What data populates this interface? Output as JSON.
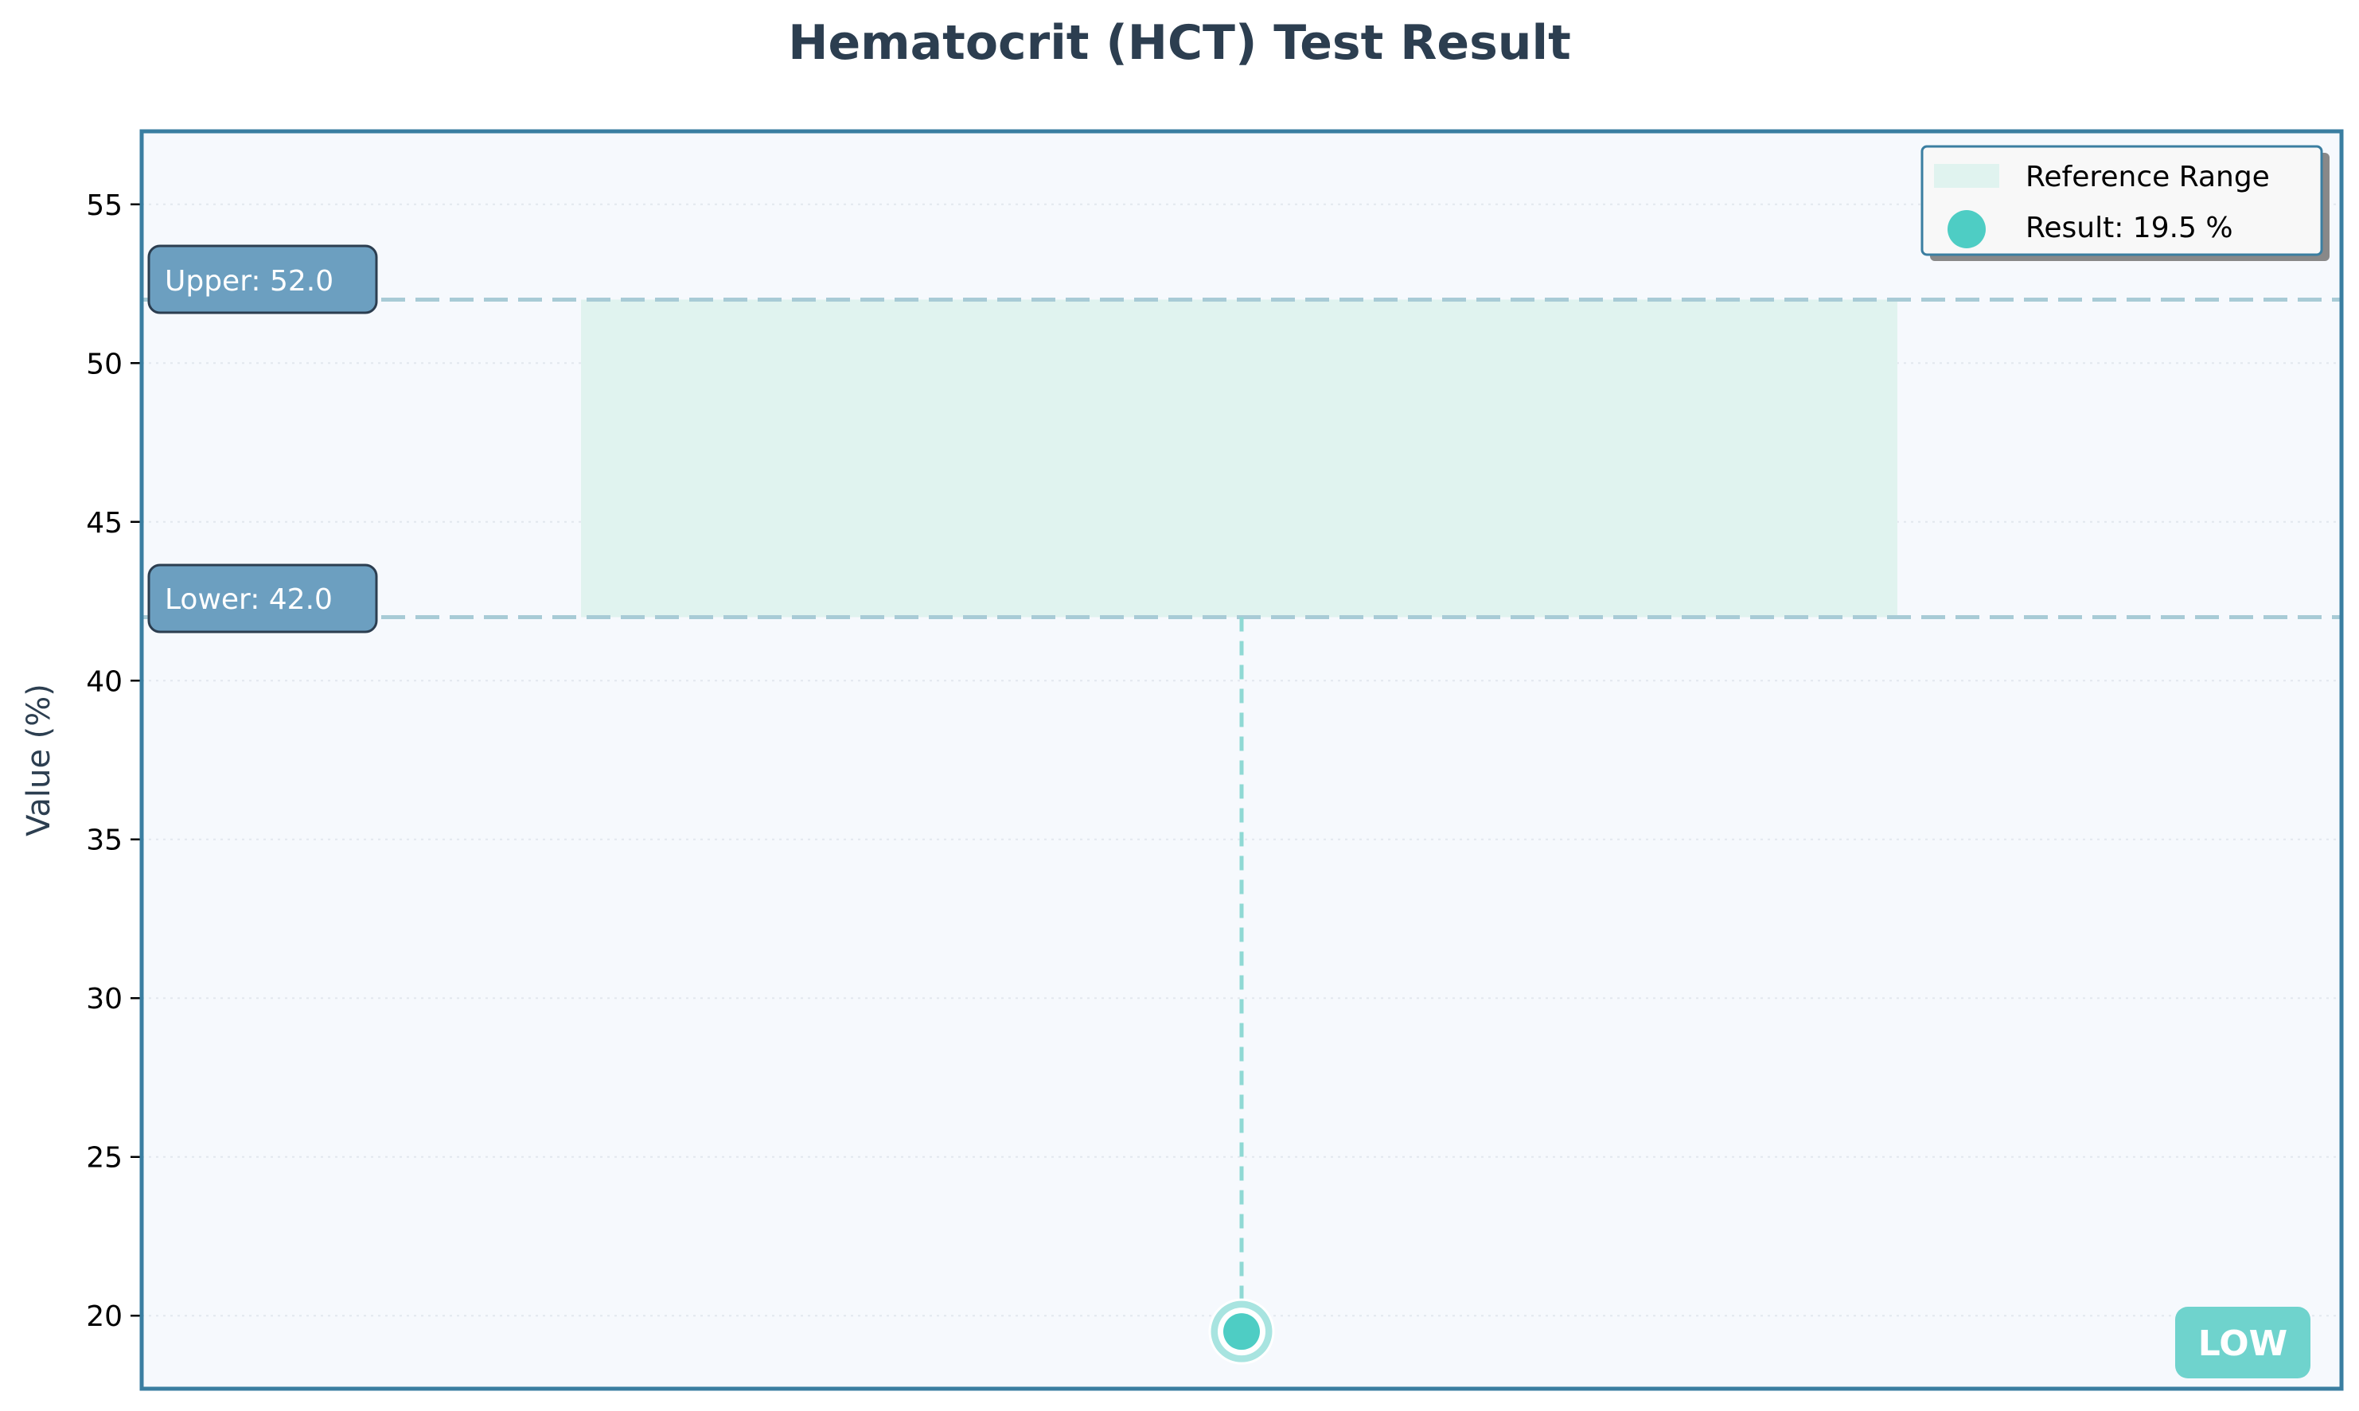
{
  "chart_data": {
    "type": "scatter",
    "title": "Hematocrit (HCT) Test Result",
    "ylabel": "Value (%)",
    "xlabel": "",
    "ylim": [
      17.7,
      57.3
    ],
    "yticks": [
      20,
      25,
      30,
      35,
      40,
      45,
      50,
      55
    ],
    "grid": true,
    "legend_position": "top-right",
    "reference_range": {
      "lower": 42.0,
      "upper": 52.0
    },
    "reference_labels": {
      "upper": "Upper: 52.0",
      "lower": "Lower: 42.0"
    },
    "result": {
      "value": 19.5
    },
    "legend": {
      "range": "Reference Range",
      "result": "Result: 19.5 %"
    },
    "status": "LOW",
    "colors": {
      "result": "#4ecdc4",
      "range_fill": "#e0f3ef",
      "ref_line": "#a8cbd6",
      "frame": "#3a7ea1",
      "plot_bg": "#f6f9fd",
      "ref_label_bg": "#6c9fc0",
      "status_bg": "#6fd3cd"
    }
  }
}
